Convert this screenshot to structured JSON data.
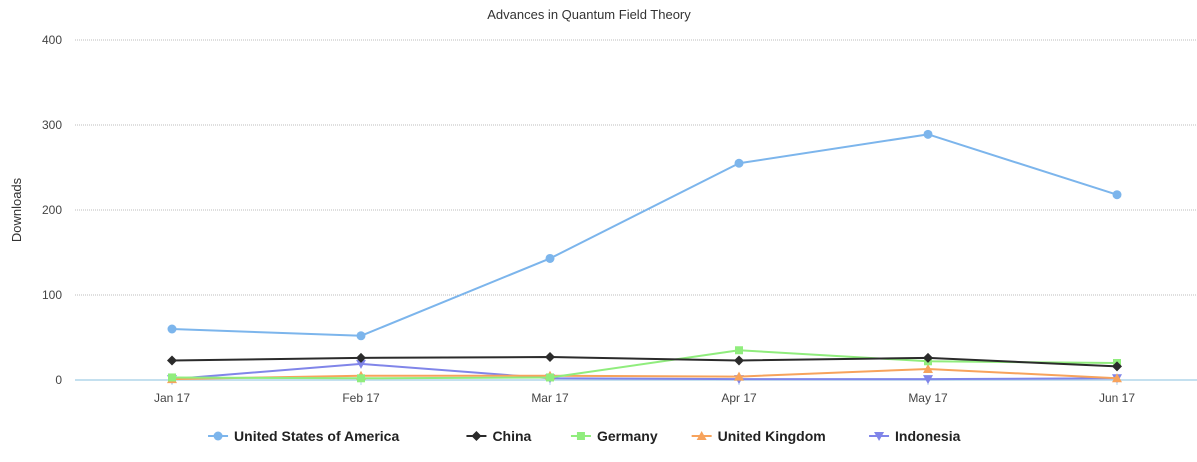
{
  "chart_data": {
    "type": "line",
    "title": "Advances in Quantum Field Theory",
    "xlabel": "",
    "ylabel": "Downloads",
    "categories": [
      "Jan 17",
      "Feb 17",
      "Mar 17",
      "Apr 17",
      "May 17",
      "Jun 17"
    ],
    "ylim": [
      0,
      400
    ],
    "yticks": [
      0,
      100,
      200,
      300,
      400
    ],
    "grid": true,
    "legend_position": "bottom",
    "series": [
      {
        "name": "United States of America",
        "color": "#7cb5ec",
        "marker": "circle",
        "values": [
          60,
          52,
          143,
          255,
          289,
          218
        ]
      },
      {
        "name": "China",
        "color": "#2b2b2b",
        "marker": "diamond",
        "values": [
          23,
          26,
          27,
          23,
          26,
          16
        ]
      },
      {
        "name": "Germany",
        "color": "#90ed7d",
        "marker": "square",
        "values": [
          3,
          2,
          3,
          35,
          22,
          20
        ]
      },
      {
        "name": "United Kingdom",
        "color": "#f7a35c",
        "marker": "triangle",
        "values": [
          1,
          5,
          5,
          4,
          13,
          2
        ]
      },
      {
        "name": "Indonesia",
        "color": "#8085e9",
        "marker": "triangle-down",
        "values": [
          1,
          19,
          2,
          1,
          1,
          2
        ]
      }
    ]
  }
}
